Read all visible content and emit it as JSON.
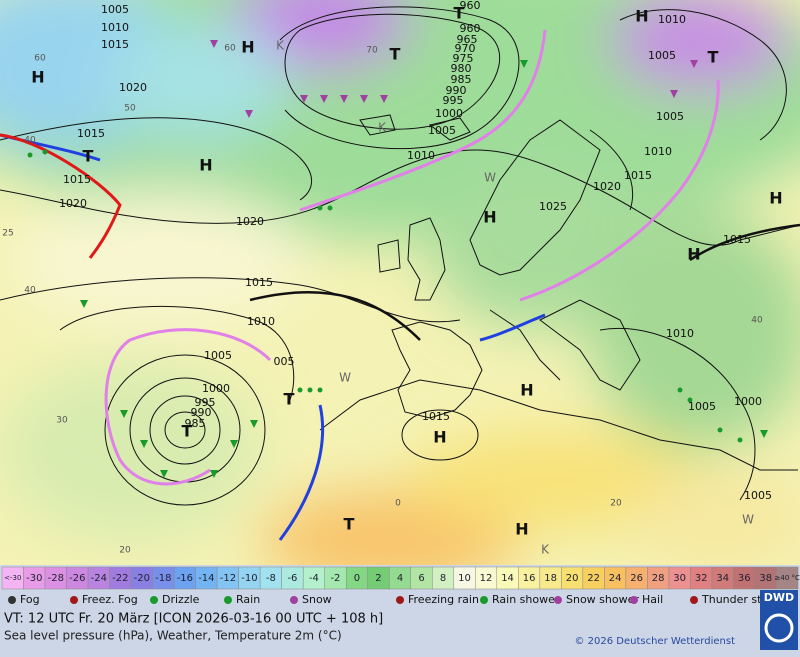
{
  "map": {
    "isobar_labels": [
      "1005",
      "1010",
      "1015",
      "1020",
      "1015",
      "1015",
      "1020",
      "1020",
      "1015",
      "1010",
      "1005",
      "005",
      "1000",
      "995",
      "990",
      "985",
      "960",
      "960",
      "965",
      "970",
      "975",
      "980",
      "985",
      "990",
      "995",
      "1000",
      "1005",
      "1010",
      "1020",
      "1025",
      "1015",
      "1010",
      "1005",
      "1005",
      "1010",
      "1015",
      "1015",
      "1010",
      "1005",
      "1000",
      "1005"
    ],
    "temperature_labels": [
      "60",
      "50",
      "40",
      "40",
      "30",
      "20",
      "25",
      "70",
      "60",
      "40",
      "20",
      "0"
    ],
    "pressure_systems": [
      "H",
      "H",
      "H",
      "T",
      "H",
      "T",
      "T",
      "T",
      "H",
      "H",
      "H",
      "T",
      "T",
      "H",
      "H",
      "T",
      "H",
      "K",
      "K",
      "K",
      "W",
      "W",
      "W"
    ]
  },
  "scale": {
    "items": [
      {
        "label": "<-30",
        "color": "#f4b4f4"
      },
      {
        "label": "-30",
        "color": "#e89ce8"
      },
      {
        "label": "-28",
        "color": "#dc90e4"
      },
      {
        "label": "-26",
        "color": "#cc88e0"
      },
      {
        "label": "-24",
        "color": "#b884e0"
      },
      {
        "label": "-22",
        "color": "#a07ce0"
      },
      {
        "label": "-20",
        "color": "#8a80e4"
      },
      {
        "label": "-18",
        "color": "#7890ea"
      },
      {
        "label": "-16",
        "color": "#6ca2f0"
      },
      {
        "label": "-14",
        "color": "#74b4f2"
      },
      {
        "label": "-12",
        "color": "#84c4f2"
      },
      {
        "label": "-10",
        "color": "#94d4f0"
      },
      {
        "label": "-8",
        "color": "#a2e2ee"
      },
      {
        "label": "-6",
        "color": "#aceae0"
      },
      {
        "label": "-4",
        "color": "#b4f0cc"
      },
      {
        "label": "-2",
        "color": "#a4e8b0"
      },
      {
        "label": "0",
        "color": "#84d884"
      },
      {
        "label": "2",
        "color": "#74cc74"
      },
      {
        "label": "4",
        "color": "#94da90"
      },
      {
        "label": "6",
        "color": "#b2e4a4"
      },
      {
        "label": "8",
        "color": "#d2f0c2"
      },
      {
        "label": "10",
        "color": "#f6f8e4"
      },
      {
        "label": "12",
        "color": "#fafad2"
      },
      {
        "label": "14",
        "color": "#fafab8"
      },
      {
        "label": "16",
        "color": "#f8f2a0"
      },
      {
        "label": "18",
        "color": "#f8ea8c"
      },
      {
        "label": "20",
        "color": "#f8e070"
      },
      {
        "label": "22",
        "color": "#f8d060"
      },
      {
        "label": "24",
        "color": "#f8c060"
      },
      {
        "label": "26",
        "color": "#f6b070"
      },
      {
        "label": "28",
        "color": "#f0a080"
      },
      {
        "label": "30",
        "color": "#ec9090"
      },
      {
        "label": "32",
        "color": "#e08080"
      },
      {
        "label": "34",
        "color": "#d07a7a"
      },
      {
        "label": "36",
        "color": "#c07272"
      },
      {
        "label": "38",
        "color": "#b27474"
      },
      {
        "label": "≥40 °C",
        "color": "#a48484"
      }
    ]
  },
  "weather_legend": [
    "Fog",
    "Freez. Fog",
    "Drizzle",
    "Rain",
    "Snow",
    "Freezing rain",
    "Rain shower",
    "Snow shower",
    "Hail",
    "Thunder storm"
  ],
  "footer": {
    "valid_time": "VT: 12 UTC Fr.  20 März [ICON 2026-03-16  00 UTC + 108 h]",
    "description": "Sea level pressure (hPa), Weather, Temperature 2m (°C)",
    "copyright": "© 2026 Deutscher Wetterdienst",
    "logo": "DWD"
  }
}
